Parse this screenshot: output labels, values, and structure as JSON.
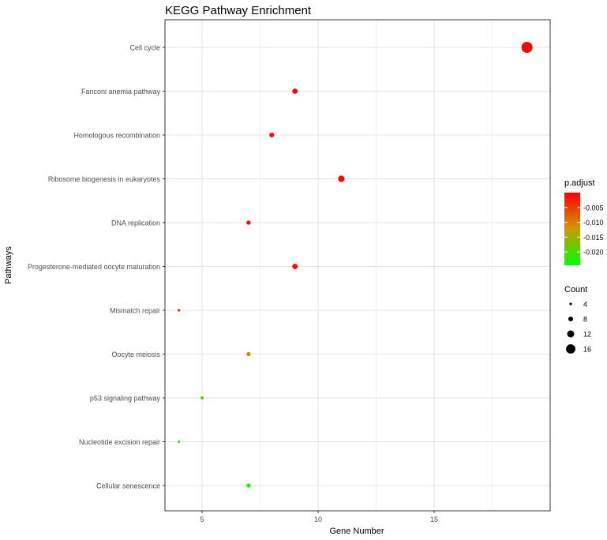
{
  "chart_data": {
    "type": "scatter",
    "title": "KEGG Pathway Enrichment",
    "xlabel": "Gene Number",
    "ylabel": "Pathways",
    "xlim": [
      3.4,
      20.0
    ],
    "x_ticks": [
      5,
      10,
      15
    ],
    "x_ticks_labels": [
      "5",
      "10",
      "15"
    ],
    "grid": true,
    "categories": [
      "Cell cycle",
      "Fanconi anemia pathway",
      "Homologous recombination",
      "Ribosome biogenesis in eukaryotes",
      "DNA replication",
      "Progesterone-mediated oocyte maturation",
      "Mismatch repair",
      "Oocyte meiosis",
      "p53 signaling pathway",
      "Nucleotide excision repair",
      "Cellular senescence"
    ],
    "points": [
      {
        "pathway": "Cell cycle",
        "x": 19,
        "count": 19,
        "p_adjust": -0.0005
      },
      {
        "pathway": "Fanconi anemia pathway",
        "x": 9,
        "count": 9,
        "p_adjust": -0.0005
      },
      {
        "pathway": "Homologous recombination",
        "x": 8,
        "count": 8,
        "p_adjust": -0.0005
      },
      {
        "pathway": "Ribosome biogenesis in eukaryotes",
        "x": 11,
        "count": 11,
        "p_adjust": -0.0005
      },
      {
        "pathway": "DNA replication",
        "x": 7,
        "count": 7,
        "p_adjust": -0.0005
      },
      {
        "pathway": "Progesterone-mediated oocyte maturation",
        "x": 9,
        "count": 9,
        "p_adjust": -0.0005
      },
      {
        "pathway": "Mismatch repair",
        "x": 4,
        "count": 4,
        "p_adjust": -0.002
      },
      {
        "pathway": "Oocyte meiosis",
        "x": 7,
        "count": 7,
        "p_adjust": -0.011
      },
      {
        "pathway": "p53 signaling pathway",
        "x": 5,
        "count": 5,
        "p_adjust": -0.019
      },
      {
        "pathway": "Nucleotide excision repair",
        "x": 4,
        "count": 4,
        "p_adjust": -0.023
      },
      {
        "pathway": "Cellular senescence",
        "x": 7,
        "count": 7,
        "p_adjust": -0.0235
      }
    ],
    "color_legend": {
      "title": "p.adjust",
      "min": -0.0245,
      "max": 0.0,
      "low_color": "#00ff00",
      "mid_color": "#cc9900",
      "high_color": "#ff0000",
      "ticks": [
        -0.005,
        -0.01,
        -0.015,
        -0.02
      ],
      "tick_labels": [
        "-0.005",
        "-0.010",
        "-0.015",
        "-0.020"
      ]
    },
    "size_legend": {
      "title": "Count",
      "values": [
        4,
        8,
        12,
        16
      ],
      "labels": [
        "4",
        "8",
        "12",
        "16"
      ]
    }
  }
}
